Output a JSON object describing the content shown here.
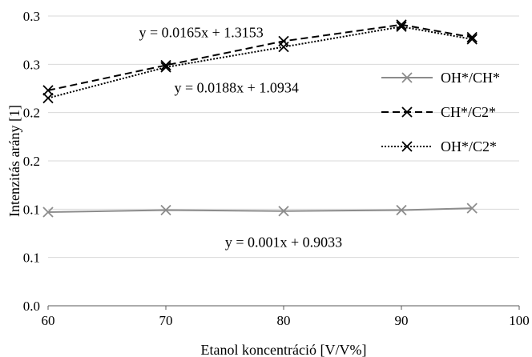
{
  "chart_data": {
    "type": "line",
    "xlabel": "Etanol koncentráció [V/V%]",
    "ylabel": "Intenzitás arány [1]",
    "xlim": [
      60,
      100
    ],
    "ylim": [
      0.0,
      0.3
    ],
    "x_ticks": [
      "60",
      "70",
      "80",
      "90",
      "100"
    ],
    "y_ticks": [
      {
        "v": 0.0,
        "label": "0.0"
      },
      {
        "v": 0.05,
        "label": "0.1"
      },
      {
        "v": 0.1,
        "label": "0.1"
      },
      {
        "v": 0.15,
        "label": "0.2"
      },
      {
        "v": 0.2,
        "label": "0.2"
      },
      {
        "v": 0.25,
        "label": "0.3"
      },
      {
        "v": 0.3,
        "label": "0.3"
      }
    ],
    "grid": "horizontal",
    "legend_position": "right",
    "x": [
      60,
      70,
      80,
      90,
      96
    ],
    "series": [
      {
        "name": "OH*/CH*",
        "values": [
          0.097,
          0.099,
          0.098,
          0.099,
          0.101
        ],
        "color": "#8c8c8c",
        "dash": "solid",
        "marker": "x"
      },
      {
        "name": "CH*/C2*",
        "values": [
          0.223,
          0.249,
          0.274,
          0.291,
          0.278
        ],
        "color": "#000000",
        "dash": "dashed",
        "marker": "x"
      },
      {
        "name": "OH*/C2*",
        "values": [
          0.215,
          0.247,
          0.268,
          0.289,
          0.276
        ],
        "color": "#000000",
        "dash": "dotted",
        "marker": "x"
      }
    ],
    "annotations": [
      {
        "text": "y = 0.0165x + 1.3153",
        "x": 73,
        "y": 0.283
      },
      {
        "text": "y = 0.0188x + 1.0934",
        "x": 76,
        "y": 0.226
      },
      {
        "text": "y = 0.001x + 0.9033",
        "x": 80,
        "y": 0.066
      }
    ]
  }
}
